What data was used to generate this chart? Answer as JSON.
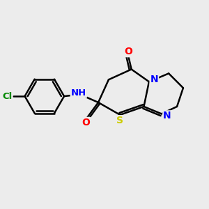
{
  "bg_color": "#ececec",
  "bond_color": "#000000",
  "bond_width": 1.8,
  "atom_colors": {
    "O": "#ff0000",
    "N": "#0000ff",
    "S": "#cccc00",
    "Cl": "#008800",
    "H": "#000000",
    "C": "#000000"
  },
  "font_size": 9.5,
  "fig_width": 3.0,
  "fig_height": 3.0,
  "dpi": 100,
  "xlim": [
    0,
    10
  ],
  "ylim": [
    0,
    10
  ]
}
